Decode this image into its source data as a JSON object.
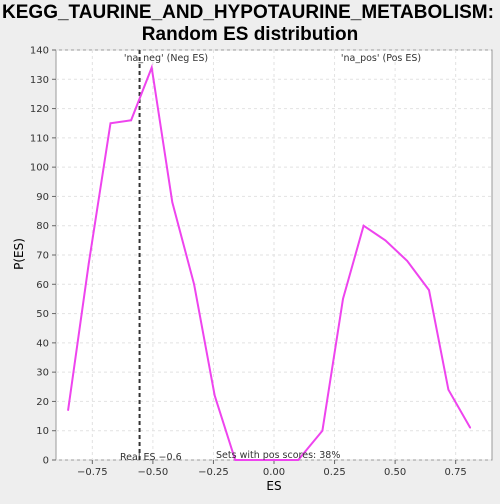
{
  "chart_data": {
    "type": "line",
    "title_lines": [
      "KEGG_TAURINE_AND_HYPOTAURINE_METABOLISM:",
      "Random ES distribution"
    ],
    "xlabel": "ES",
    "ylabel": "P(ES)",
    "xlim": [
      -0.9,
      0.9
    ],
    "ylim": [
      0,
      140
    ],
    "x_ticks": [
      -0.75,
      -0.5,
      -0.25,
      0.0,
      0.25,
      0.5,
      0.75
    ],
    "x_tick_labels": [
      "−0.75",
      "−0.50",
      "−0.25",
      "0.00",
      "0.25",
      "0.50",
      "0.75"
    ],
    "y_ticks": [
      0,
      10,
      20,
      30,
      40,
      50,
      60,
      70,
      80,
      90,
      100,
      110,
      120,
      130,
      140
    ],
    "y_tick_labels": [
      "0",
      "10",
      "20",
      "30",
      "40",
      "50",
      "60",
      "70",
      "80",
      "90",
      "100",
      "110",
      "120",
      "130",
      "140"
    ],
    "grid": true,
    "series": [
      {
        "color": "#ee44ee",
        "x": [
          -0.85,
          -0.765,
          -0.675,
          -0.59,
          -0.505,
          -0.42,
          -0.33,
          -0.245,
          -0.16,
          -0.075,
          0.01,
          0.1,
          0.2,
          0.285,
          0.37,
          0.46,
          0.55,
          0.64,
          0.72,
          0.81
        ],
        "y": [
          17,
          67,
          115,
          116,
          134,
          88,
          60,
          22,
          0,
          0,
          0,
          0,
          10,
          55,
          80,
          75,
          68,
          58,
          24,
          11
        ]
      }
    ],
    "vline": {
      "x": -0.555,
      "color": "#333333",
      "label": "Real ES −0.6"
    },
    "annotations": {
      "neg_label": "'na_neg' (Neg ES)",
      "neg_color": "#4444dd",
      "pos_label": "'na_pos' (Pos ES)",
      "pos_color": "#ee4444",
      "pos_scores": "Sets with pos scores: 38%"
    }
  }
}
